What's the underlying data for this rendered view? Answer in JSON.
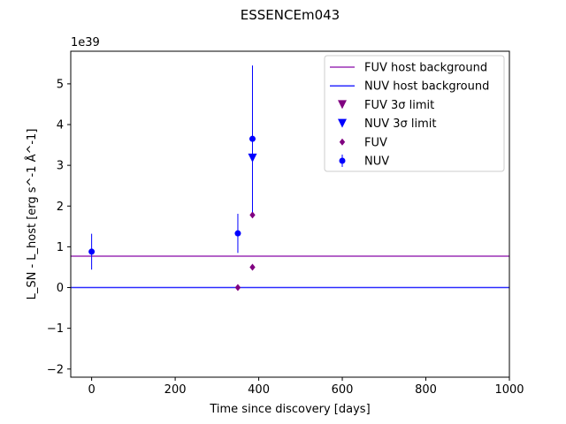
{
  "chart_data": {
    "type": "scatter",
    "title": "ESSENCEm043",
    "xlabel": "Time since discovery [days]",
    "ylabel": "L_SN - L_host [erg s^-1 Å^-1]",
    "y_offset_text": "1e39",
    "xlim": [
      -50,
      1000
    ],
    "ylim": [
      -2.2,
      5.8
    ],
    "x_ticks": [
      0,
      200,
      400,
      600,
      800,
      1000
    ],
    "y_ticks": [
      -2,
      -1,
      0,
      1,
      2,
      3,
      4,
      5
    ],
    "legend_position": "top-right",
    "grid": false,
    "colors": {
      "fuv": "#800080",
      "nuv": "#0000ff",
      "fuv_line": "#9b30b5",
      "nuv_line": "#2b2bff"
    },
    "hlines": [
      {
        "name": "FUV host background",
        "y": 0.77,
        "color": "#9b30b5"
      },
      {
        "name": "NUV host background",
        "y": 0.0,
        "color": "#2b2bff"
      }
    ],
    "series": [
      {
        "name": "FUV 3σ limit",
        "marker": "triangle-down",
        "color": "#800080",
        "points": []
      },
      {
        "name": "NUV 3σ limit",
        "marker": "triangle-down",
        "color": "#0000ff",
        "points": [
          {
            "x": 385,
            "y": 3.18
          }
        ]
      },
      {
        "name": "FUV",
        "marker": "diamond",
        "color": "#800080",
        "points": [
          {
            "x": 350,
            "y": 0.0
          },
          {
            "x": 385,
            "y": 0.5
          },
          {
            "x": 385,
            "y": 1.78
          }
        ]
      },
      {
        "name": "NUV",
        "marker": "circle",
        "color": "#0000ff",
        "points": [
          {
            "x": 0,
            "y": 0.88,
            "err": 0.44
          },
          {
            "x": 350,
            "y": 1.33,
            "err": 0.48
          },
          {
            "x": 385,
            "y": 3.65,
            "err": 1.8
          }
        ]
      }
    ]
  }
}
